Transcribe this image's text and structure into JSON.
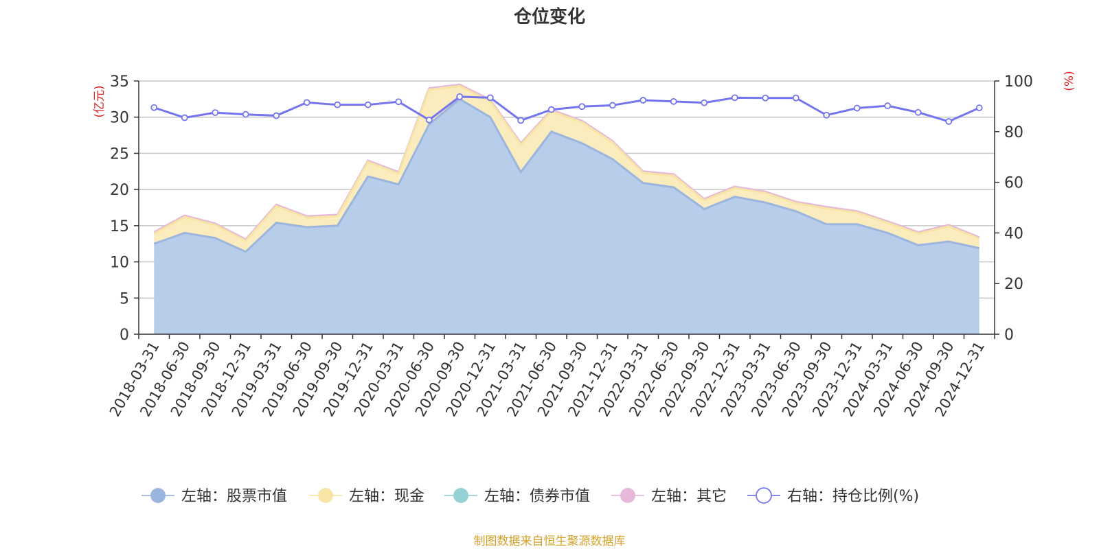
{
  "chart_data": {
    "type": "area",
    "title": "仓位变化",
    "left_axis_unit": "(亿元)",
    "right_axis_unit": "(%)",
    "ylim_left": [
      0,
      35
    ],
    "ylim_right": [
      0,
      100
    ],
    "left_ticks": [
      "0",
      "5",
      "10",
      "15",
      "20",
      "25",
      "30",
      "35"
    ],
    "right_ticks": [
      "0",
      "20",
      "40",
      "60",
      "80",
      "100"
    ],
    "grid": true,
    "legend_position": "bottom",
    "x": [
      "2018-03-31",
      "2018-06-30",
      "2018-09-30",
      "2018-12-31",
      "2019-03-31",
      "2019-06-30",
      "2019-09-30",
      "2019-12-31",
      "2020-03-31",
      "2020-06-30",
      "2020-09-30",
      "2020-12-31",
      "2021-03-31",
      "2021-06-30",
      "2021-09-30",
      "2021-12-31",
      "2022-03-31",
      "2022-06-30",
      "2022-09-30",
      "2022-12-31",
      "2023-03-31",
      "2023-06-30",
      "2023-09-30",
      "2023-12-31",
      "2024-03-31",
      "2024-06-30",
      "2024-09-30",
      "2024-12-31"
    ],
    "series": [
      {
        "name": "左轴：股票市值",
        "axis": "left",
        "color": "#9bb5df",
        "fill": "#b8cdea",
        "values": [
          12.5,
          14.0,
          13.3,
          11.4,
          15.4,
          14.8,
          15.0,
          21.8,
          20.7,
          29.0,
          32.5,
          30.0,
          22.4,
          28.0,
          26.4,
          24.2,
          20.9,
          20.3,
          17.3,
          19.0,
          18.2,
          17.0,
          15.2,
          15.2,
          14.0,
          12.3,
          12.8,
          11.9
        ]
      },
      {
        "name": "左轴：现金",
        "axis": "left",
        "color": "#f8e4a4",
        "fill": "#faecbd",
        "values": [
          1.4,
          2.2,
          1.8,
          1.5,
          2.3,
          1.3,
          1.3,
          2.0,
          1.5,
          4.8,
          1.8,
          2.2,
          3.8,
          2.8,
          2.9,
          2.3,
          1.4,
          1.6,
          1.2,
          1.2,
          1.3,
          1.1,
          2.2,
          1.6,
          1.4,
          1.6,
          2.1,
          1.3
        ]
      },
      {
        "name": "左轴：债券市值",
        "axis": "left",
        "color": "#94d2d4",
        "fill": "#b8e3e4",
        "values": [
          0,
          0,
          0,
          0,
          0,
          0,
          0,
          0,
          0,
          0,
          0,
          0,
          0,
          0,
          0,
          0,
          0,
          0,
          0,
          0,
          0,
          0,
          0,
          0,
          0,
          0,
          0,
          0
        ]
      },
      {
        "name": "左轴：其它",
        "axis": "left",
        "color": "#e7b8d9",
        "fill": "#eec9e3",
        "values": [
          0.2,
          0.2,
          0.2,
          0.2,
          0.2,
          0.2,
          0.2,
          0.2,
          0.2,
          0.2,
          0.2,
          0.2,
          0.2,
          0.2,
          0.2,
          0.2,
          0.2,
          0.2,
          0.2,
          0.2,
          0.2,
          0.2,
          0.2,
          0.2,
          0.2,
          0.2,
          0.2,
          0.2
        ]
      },
      {
        "name": "右轴：持仓比例(%)",
        "axis": "right",
        "color": "#7474ee",
        "values": [
          89.5,
          85.5,
          87.5,
          86.8,
          86.3,
          91.5,
          90.6,
          90.6,
          91.8,
          84.6,
          93.8,
          93.4,
          84.4,
          88.7,
          89.9,
          90.4,
          92.4,
          91.9,
          91.4,
          93.4,
          93.3,
          93.3,
          86.5,
          89.3,
          90.2,
          87.6,
          84.0,
          89.4
        ]
      }
    ]
  },
  "footer": {
    "source": "制图数据来自恒生聚源数据库",
    "source_color": "#d4a22a"
  }
}
